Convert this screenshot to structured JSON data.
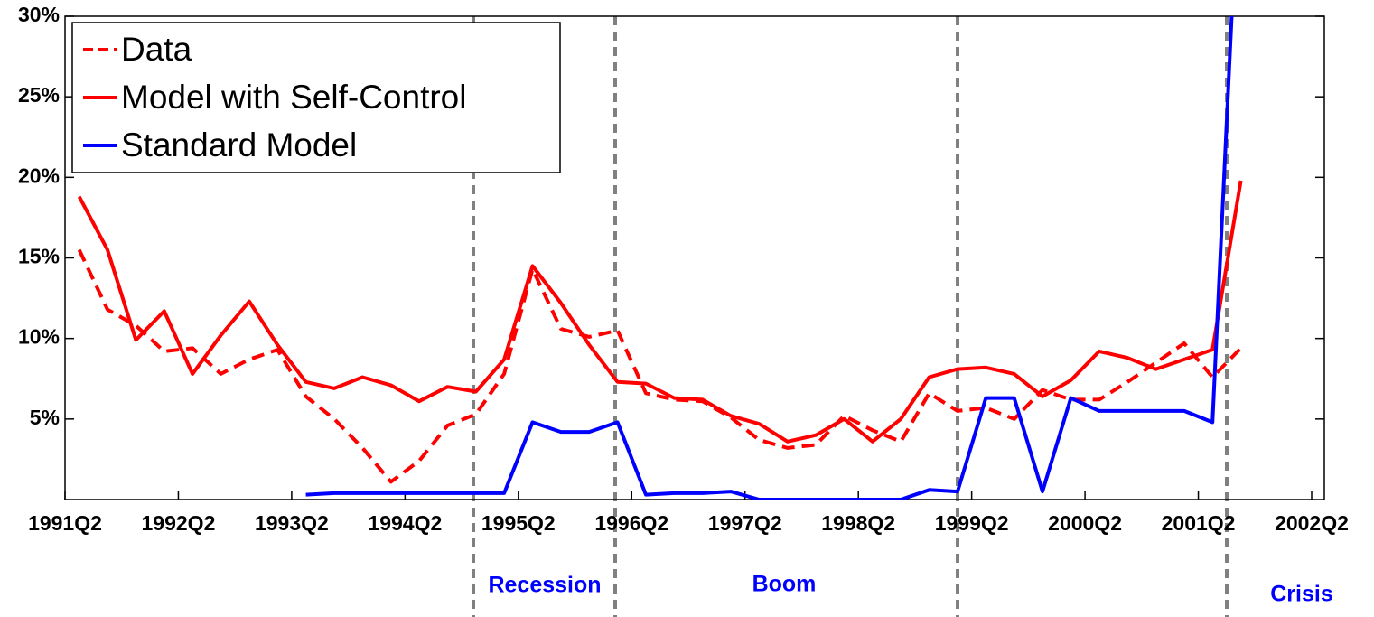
{
  "chart_data": {
    "type": "line",
    "categories": [
      "1991Q2",
      null,
      null,
      null,
      "1992Q2",
      null,
      null,
      null,
      "1993Q2",
      null,
      null,
      null,
      "1994Q2",
      null,
      null,
      null,
      "1995Q2",
      null,
      null,
      null,
      "1996Q2",
      null,
      null,
      null,
      "1997Q2",
      null,
      null,
      null,
      "1998Q2",
      null,
      null,
      null,
      "1999Q2",
      null,
      null,
      null,
      "2000Q2",
      null,
      null,
      null,
      "2001Q2",
      null,
      null,
      null,
      "2002Q2"
    ],
    "series": [
      {
        "name": "Data",
        "color": "#ff0000",
        "dash": true,
        "values": [
          15.5,
          11.8,
          10.8,
          9.2,
          9.4,
          7.8,
          8.7,
          9.3,
          6.4,
          5.0,
          3.2,
          1.1,
          2.4,
          4.6,
          5.3,
          7.8,
          14.3,
          10.6,
          10.1,
          10.5,
          6.6,
          6.2,
          6.1,
          5.1,
          3.7,
          3.2,
          3.4,
          5.2,
          4.3,
          3.6,
          6.6,
          5.5,
          5.7,
          5.0,
          6.8,
          6.2,
          6.2,
          7.3,
          8.5,
          9.7,
          7.6,
          9.4,
          null,
          null,
          null
        ]
      },
      {
        "name": "Model with Self-Control",
        "color": "#ff0000",
        "dash": false,
        "values": [
          18.8,
          15.5,
          9.9,
          11.7,
          7.8,
          10.2,
          12.3,
          9.6,
          7.3,
          6.9,
          7.6,
          7.1,
          6.1,
          7.0,
          6.7,
          8.7,
          14.5,
          12.2,
          9.6,
          7.3,
          7.2,
          6.3,
          6.2,
          5.2,
          4.7,
          3.6,
          4.0,
          5.0,
          3.6,
          5.0,
          7.6,
          8.1,
          8.2,
          7.8,
          6.4,
          7.4,
          9.2,
          8.8,
          8.1,
          8.7,
          9.3,
          19.8,
          null,
          null,
          null
        ]
      },
      {
        "name": "Standard Model",
        "color": "#0000ff",
        "dash": false,
        "values": [
          null,
          null,
          null,
          null,
          null,
          null,
          null,
          null,
          0.3,
          0.4,
          0.4,
          0.4,
          0.4,
          0.4,
          0.4,
          0.4,
          4.8,
          4.2,
          4.2,
          4.8,
          0.3,
          0.4,
          0.4,
          0.5,
          0.0,
          0.0,
          0.0,
          0.0,
          0.0,
          0.0,
          0.6,
          0.5,
          6.3,
          6.3,
          0.5,
          6.3,
          5.5,
          5.5,
          5.5,
          5.5,
          4.8,
          42,
          null,
          null,
          null
        ]
      }
    ],
    "ylim": [
      0,
      30
    ],
    "yticks": [
      {
        "value": 5,
        "label": "5%"
      },
      {
        "value": 10,
        "label": "10%"
      },
      {
        "value": 15,
        "label": "15%"
      },
      {
        "value": 20,
        "label": "20%"
      },
      {
        "value": 25,
        "label": "25%"
      },
      {
        "value": 30,
        "label": "30%"
      }
    ],
    "grid": false,
    "legend": "upper-left",
    "annotations": [
      "Recession",
      "Boom",
      "Crisis"
    ]
  }
}
